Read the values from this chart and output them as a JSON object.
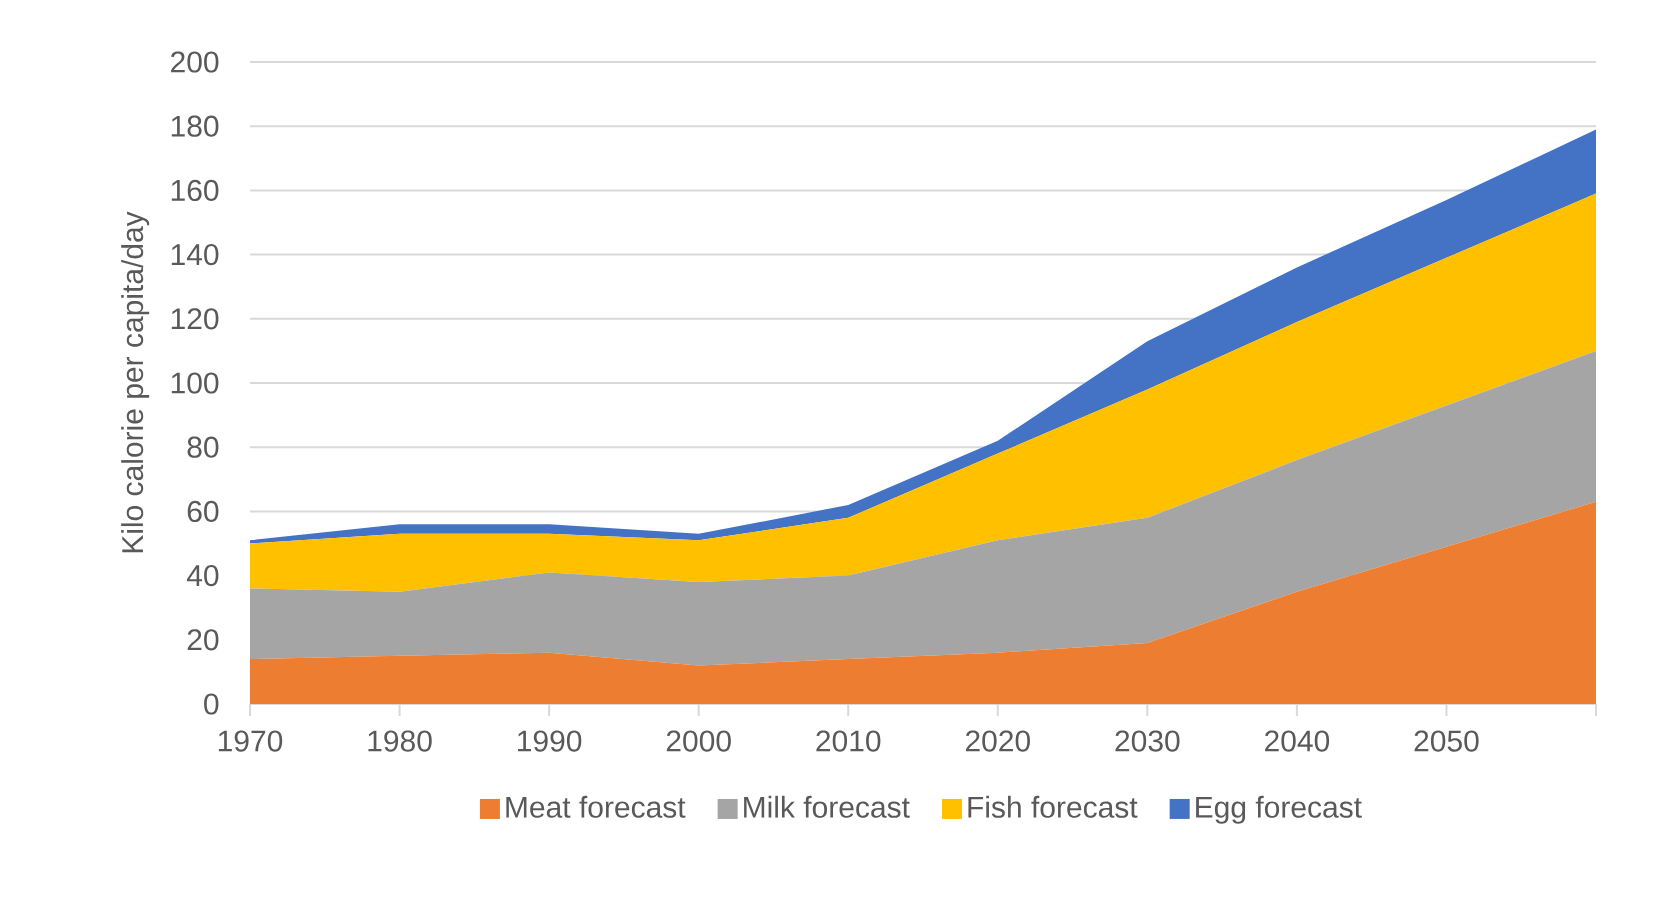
{
  "chart_data": {
    "type": "area",
    "stacked": true,
    "ylabel": "Kilo calorie per capita/day",
    "x": [
      1970,
      1980,
      1990,
      2000,
      2010,
      2020,
      2030,
      2040,
      2050,
      2060
    ],
    "series": [
      {
        "name": "Meat forecast",
        "color": "#ed7d31",
        "values": [
          14,
          15,
          16,
          12,
          14,
          16,
          19,
          35,
          49,
          63
        ]
      },
      {
        "name": "Milk forecast",
        "color": "#a5a5a5",
        "values": [
          22,
          20,
          25,
          26,
          26,
          35,
          39,
          41,
          44,
          47
        ]
      },
      {
        "name": "Fish forecast",
        "color": "#ffc000",
        "values": [
          14,
          18,
          12,
          13,
          18,
          27,
          40,
          43,
          46,
          49
        ]
      },
      {
        "name": "Egg forecast",
        "color": "#4472c4",
        "values": [
          1,
          3,
          3,
          2,
          4,
          4,
          15,
          17,
          18,
          20
        ]
      }
    ],
    "xlim": [
      1970,
      2060
    ],
    "xticks": [
      1970,
      1980,
      1990,
      2000,
      2010,
      2020,
      2030,
      2040,
      2050,
      {
        "value": 2060,
        "label": null
      }
    ],
    "ylim": [
      0,
      200
    ],
    "yticks": [
      0,
      20,
      40,
      60,
      80,
      100,
      120,
      140,
      160,
      180,
      200
    ],
    "grid": "y",
    "legend": "bottom"
  }
}
